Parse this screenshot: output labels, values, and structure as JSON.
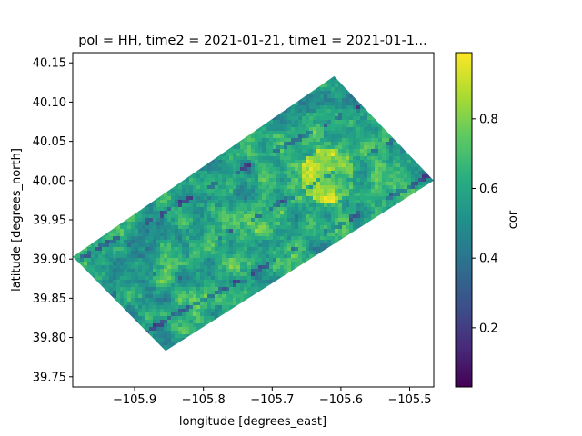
{
  "chart_data": {
    "type": "heatmap",
    "title": "pol = HH, time2 = 2021-01-21, time1 = 2021-01-1...",
    "xlabel": "longitude [degrees_east]",
    "ylabel": "latitude [degrees_north]",
    "xlim": [
      -105.99,
      -105.465
    ],
    "ylim": [
      39.737,
      40.163
    ],
    "x_ticks": [
      {
        "value": -105.9,
        "label": "−105.9"
      },
      {
        "value": -105.8,
        "label": "−105.8"
      },
      {
        "value": -105.7,
        "label": "−105.7"
      },
      {
        "value": -105.6,
        "label": "−105.6"
      },
      {
        "value": -105.5,
        "label": "−105.5"
      }
    ],
    "y_ticks": [
      {
        "value": 39.75,
        "label": "39.75"
      },
      {
        "value": 39.8,
        "label": "39.80"
      },
      {
        "value": 39.85,
        "label": "39.85"
      },
      {
        "value": 39.9,
        "label": "39.90"
      },
      {
        "value": 39.95,
        "label": "39.95"
      },
      {
        "value": 40.0,
        "label": "40.00"
      },
      {
        "value": 40.05,
        "label": "40.05"
      },
      {
        "value": 40.1,
        "label": "40.10"
      },
      {
        "value": 40.15,
        "label": "40.15"
      }
    ],
    "footprint": [
      {
        "lon": -105.99,
        "lat": 39.903
      },
      {
        "lon": -105.61,
        "lat": 40.133
      },
      {
        "lon": -105.465,
        "lat": 40.0
      },
      {
        "lon": -105.855,
        "lat": 39.783
      }
    ],
    "colorbar": {
      "label": "cor",
      "range": [
        0.03,
        0.99
      ],
      "colormap": "viridis",
      "ticks": [
        {
          "value": 0.2,
          "label": "0.2"
        },
        {
          "value": 0.4,
          "label": "0.4"
        },
        {
          "value": 0.6,
          "label": "0.6"
        },
        {
          "value": 0.8,
          "label": "0.8"
        }
      ]
    },
    "grid": false
  }
}
